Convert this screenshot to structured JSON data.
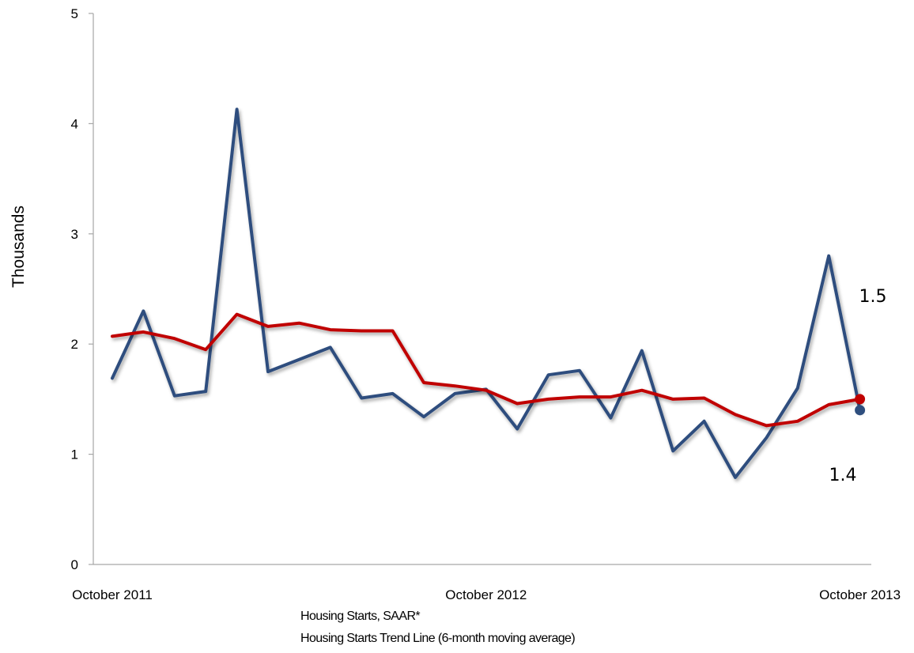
{
  "chart_data": {
    "type": "line",
    "title": "",
    "xlabel": "",
    "ylabel": "Thousands",
    "ylim": [
      0,
      5
    ],
    "y_ticks": [
      "0",
      "1",
      "2",
      "3",
      "4",
      "5"
    ],
    "x_ticks": [
      {
        "index": 0,
        "label": "October 2011"
      },
      {
        "index": 12,
        "label": "October 2012"
      },
      {
        "index": 24,
        "label": "October 2013"
      }
    ],
    "grid": false,
    "legend_position": "bottom",
    "series": [
      {
        "name": "Housing Starts, SAAR*",
        "color": "#2e4e7e",
        "values": [
          1.69,
          2.3,
          1.53,
          1.57,
          4.13,
          1.75,
          1.86,
          1.97,
          1.51,
          1.55,
          1.34,
          1.55,
          1.59,
          1.23,
          1.72,
          1.76,
          1.33,
          1.94,
          1.03,
          1.3,
          0.79,
          1.15,
          1.6,
          2.8,
          1.4
        ]
      },
      {
        "name": "Housing Starts Trend Line (6-month moving average)",
        "color": "#c00000",
        "values": [
          2.07,
          2.11,
          2.05,
          1.95,
          2.27,
          2.16,
          2.19,
          2.13,
          2.12,
          2.12,
          1.65,
          1.62,
          1.58,
          1.46,
          1.5,
          1.52,
          1.52,
          1.58,
          1.5,
          1.51,
          1.36,
          1.26,
          1.3,
          1.45,
          1.5
        ]
      }
    ],
    "annotations": [
      {
        "text": "1.5",
        "series": 1
      },
      {
        "text": "1.4",
        "series": 0
      }
    ]
  }
}
